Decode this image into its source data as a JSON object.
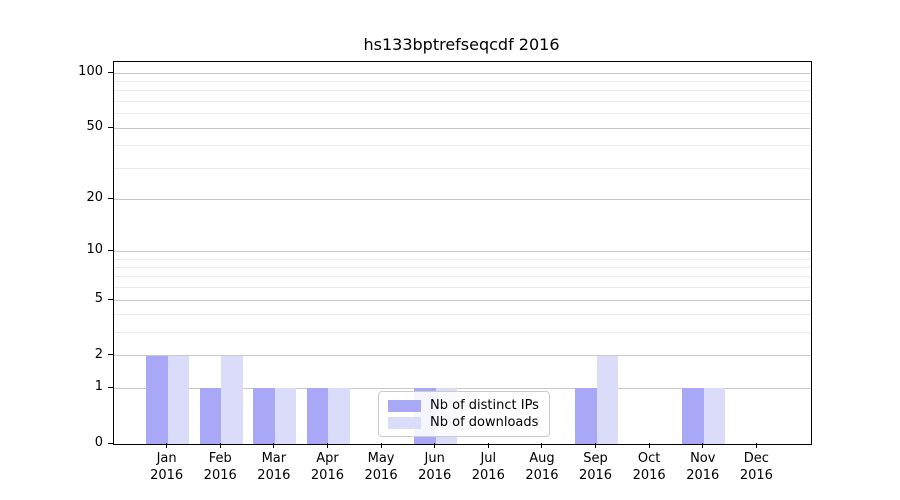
{
  "title": "hs133bptrefseqcdf 2016",
  "colors": {
    "background": "#ffffff",
    "axis": "#000000",
    "grid_major": "#c9c9c9",
    "grid_minor": "#ececec",
    "bar_ips": "#a8a8f7",
    "bar_downloads": "#dbdbfa",
    "legend_border": "#cccccc"
  },
  "chart_data": {
    "type": "bar",
    "title": "hs133bptrefseqcdf 2016",
    "categories": [
      "Jan",
      "Feb",
      "Mar",
      "Apr",
      "May",
      "Jun",
      "Jul",
      "Aug",
      "Sep",
      "Oct",
      "Nov",
      "Dec"
    ],
    "category_year": "2016",
    "series": [
      {
        "name": "Nb of distinct IPs",
        "color": "#a8a8f7",
        "values": [
          2,
          1,
          1,
          1,
          0,
          1,
          0,
          0,
          1,
          0,
          1,
          0
        ]
      },
      {
        "name": "Nb of downloads",
        "color": "#dbdbfa",
        "values": [
          2,
          2,
          1,
          1,
          0,
          1,
          0,
          0,
          2,
          0,
          1,
          0
        ]
      }
    ],
    "xlabel": "",
    "ylabel": "",
    "y_axis": {
      "scale": "log10(1+value)",
      "tick_values": [
        0,
        1,
        2,
        5,
        10,
        20,
        50,
        100
      ],
      "tick_labels": [
        "0",
        "1",
        "2",
        "5",
        "10",
        "20",
        "50",
        "100"
      ],
      "minor_gridline_values": [
        3,
        4,
        6,
        7,
        8,
        9,
        30,
        40,
        60,
        70,
        80,
        90
      ],
      "range_top_value": 115
    },
    "grid": "on",
    "legend": {
      "position": "lower center",
      "entries": [
        "Nb of distinct IPs",
        "Nb of downloads"
      ]
    }
  }
}
